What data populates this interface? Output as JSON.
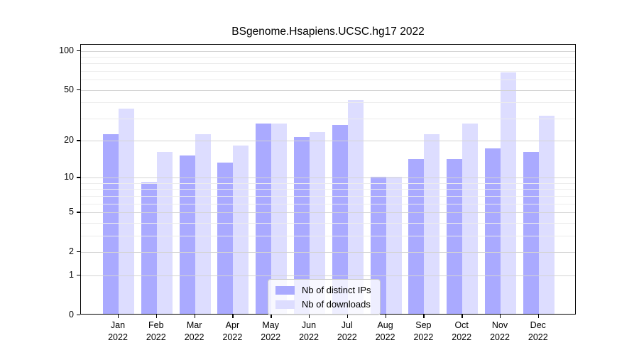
{
  "chart_data": {
    "type": "bar",
    "title": "BSgenome.Hsapiens.UCSC.hg17 2022",
    "categories": [
      "Jan",
      "Feb",
      "Mar",
      "Apr",
      "May",
      "Jun",
      "Jul",
      "Aug",
      "Sep",
      "Oct",
      "Nov",
      "Dec"
    ],
    "year": "2022",
    "series": [
      {
        "name": "Nb of distinct IPs",
        "color": "#aaaaff",
        "values": [
          22,
          9,
          15,
          13,
          27,
          21,
          26,
          10,
          14,
          14,
          17,
          16
        ]
      },
      {
        "name": "Nb of downloads",
        "color": "#ddddff",
        "values": [
          35,
          16,
          22,
          18,
          27,
          23,
          41,
          10,
          22,
          27,
          67,
          31
        ]
      }
    ],
    "xlabel": "",
    "ylabel": "",
    "yscale": "log10(1+x)",
    "yticks": [
      0,
      1,
      2,
      5,
      10,
      20,
      50,
      100
    ],
    "minor_gridlines": [
      3,
      4,
      6,
      7,
      8,
      9,
      30,
      40,
      60,
      70,
      80,
      90
    ],
    "ylim": [
      0,
      111
    ],
    "grid": true,
    "legend_position": "inside-bottom-center",
    "axis_color": "#000000",
    "major_grid_color": "#d4d4d4",
    "minor_grid_color": "#ececec"
  }
}
